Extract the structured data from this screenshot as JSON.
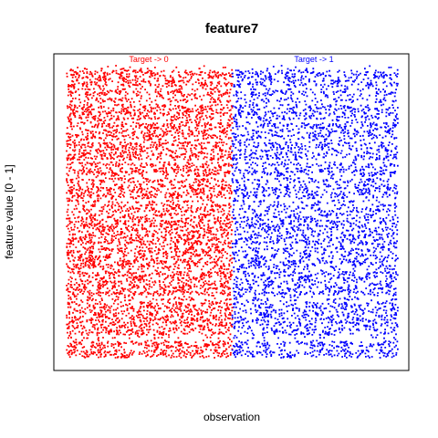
{
  "chart_data": {
    "type": "scatter",
    "title": "feature7",
    "xlabel": "observation",
    "ylabel": "feature value [0 - 1]",
    "xlim": [
      0,
      1
    ],
    "ylim": [
      0,
      1
    ],
    "grid": false,
    "legend": "none",
    "series": [
      {
        "name": "Target -> 0",
        "color": "#ff0000",
        "x_range": [
          0.0,
          0.5
        ],
        "y_range": [
          0.0,
          1.0
        ],
        "distribution": "dense uniform scatter"
      },
      {
        "name": "Target -> 1",
        "color": "#0000ff",
        "x_range": [
          0.5,
          1.0
        ],
        "y_range": [
          0.0,
          1.0
        ],
        "distribution": "dense uniform scatter"
      }
    ]
  }
}
